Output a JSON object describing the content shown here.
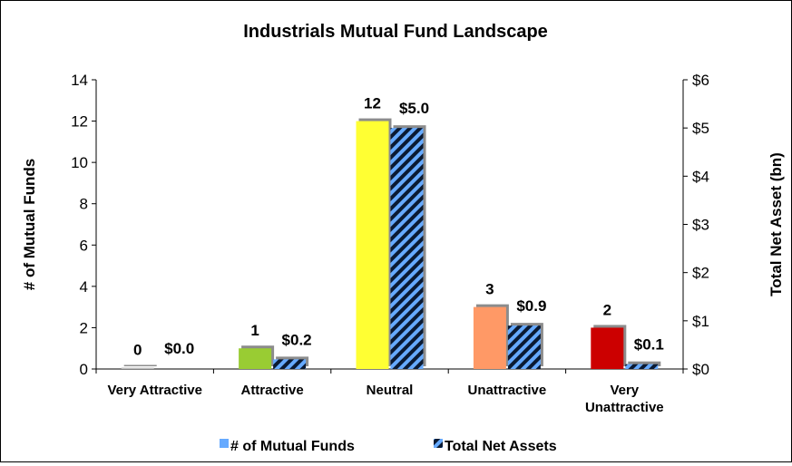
{
  "chart_data": {
    "type": "bar",
    "title": "Industrials Mutual Fund Landscape",
    "categories": [
      [
        "Very Attractive"
      ],
      [
        "Attractive"
      ],
      [
        "Neutral"
      ],
      [
        "Unattractive"
      ],
      [
        "Very",
        "Unattractive"
      ]
    ],
    "series": [
      {
        "name": "# of Mutual Funds",
        "axis": "left",
        "values": [
          0,
          1,
          12,
          3,
          2
        ],
        "labels": [
          "0",
          "1",
          "12",
          "3",
          "2"
        ],
        "colors": [
          "#bfbfbf",
          "#99cc33",
          "#ffff33",
          "#ff9966",
          "#cc0000"
        ]
      },
      {
        "name": "Total Net Assets",
        "axis": "right",
        "values": [
          0.0,
          0.2,
          5.0,
          0.9,
          0.1
        ],
        "labels": [
          "$0.0",
          "$0.2",
          "$5.0",
          "$0.9",
          "$0.1"
        ],
        "pattern": "blue-black diagonal stripes"
      }
    ],
    "ylabel": "# of Mutual Funds",
    "ylim": [
      0,
      14
    ],
    "yticks": [
      "0",
      "2",
      "4",
      "6",
      "8",
      "10",
      "12",
      "14"
    ],
    "y2label": "Total Net Asset (bn)",
    "y2lim": [
      0,
      6
    ],
    "y2ticks": [
      "$0",
      "$1",
      "$2",
      "$3",
      "$4",
      "$5",
      "$6"
    ],
    "legend_position": "bottom",
    "grid": false,
    "colors": {
      "stripe_blue": "#66aaff",
      "stripe_dark": "#0a1a33",
      "shadow": "#8c8c8c"
    }
  }
}
